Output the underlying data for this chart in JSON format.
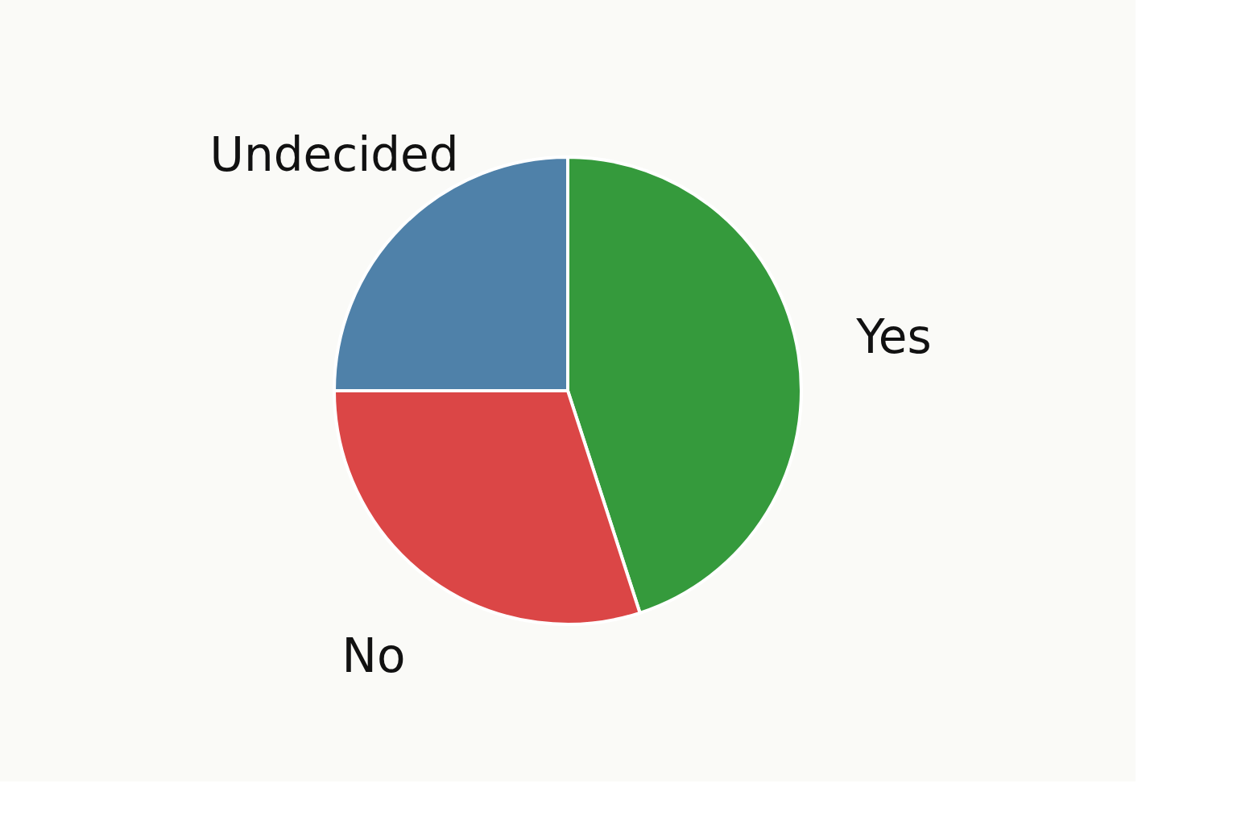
{
  "chart_data": {
    "type": "pie",
    "categories": [
      "Yes",
      "No",
      "Undecided"
    ],
    "values": [
      45,
      30,
      25
    ],
    "colors": [
      "#359a3c",
      "#db4646",
      "#4f81a9"
    ],
    "legend": false
  }
}
